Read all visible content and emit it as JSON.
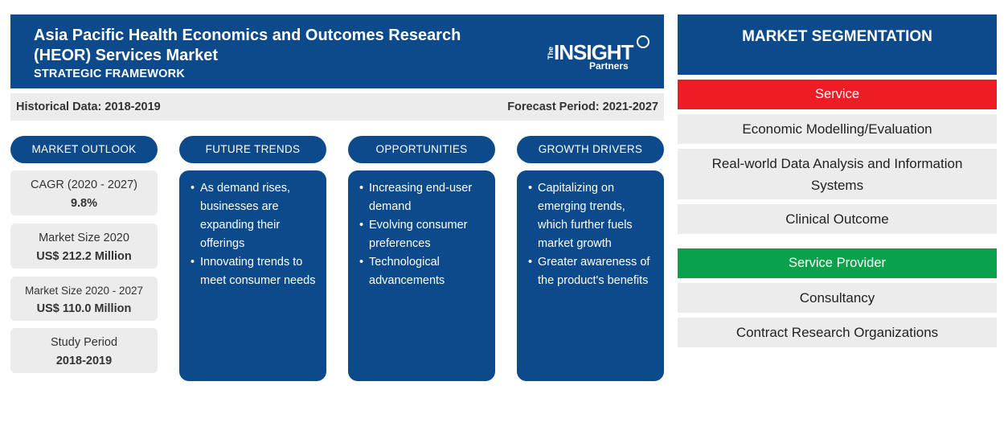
{
  "header": {
    "title": "Asia Pacific Health Economics and Outcomes Research (HEOR) Services Market",
    "subtitle": "STRATEGIC FRAMEWORK",
    "logo": {
      "line1_small": "The",
      "line1_big": "INSIGHT",
      "line2": "Partners"
    }
  },
  "periods": {
    "historical": "Historical Data: 2018-2019",
    "forecast": "Forecast Period: 2021-2027"
  },
  "columns": {
    "outlook": "MARKET OUTLOOK",
    "trends": "FUTURE TRENDS",
    "opportunities": "OPPORTUNITIES",
    "drivers": "GROWTH DRIVERS"
  },
  "outlook": [
    {
      "label": "CAGR (2020 - 2027)",
      "value": "9.8%"
    },
    {
      "label": "Market Size 2020",
      "value": "US$ 212.2 Million"
    },
    {
      "label": "Market Size 2020 - 2027",
      "value": "US$ 110.0 Million"
    },
    {
      "label": "Study Period",
      "value": "2018-2019"
    }
  ],
  "trends": [
    "As demand rises, businesses are expanding their offerings",
    "Innovating trends to meet consumer needs"
  ],
  "opportunities": [
    "Increasing end-user demand",
    "Evolving consumer preferences",
    "Technological advancements"
  ],
  "drivers": [
    "Capitalizing on emerging trends, which further fuels market growth",
    "Greater awareness of the product's benefits"
  ],
  "segmentation": {
    "title": "MARKET SEGMENTATION",
    "categories": [
      {
        "name": "Service",
        "color": "#ee1c25",
        "items": [
          "Economic Modelling/Evaluation",
          "Real-world Data Analysis and Information Systems",
          "Clinical Outcome"
        ]
      },
      {
        "name": "Service Provider",
        "color": "#0aa14b",
        "items": [
          "Consultancy",
          "Contract Research Organizations"
        ]
      }
    ]
  },
  "colors": {
    "navy": "#0d4a8b",
    "gray": "#ececec"
  }
}
